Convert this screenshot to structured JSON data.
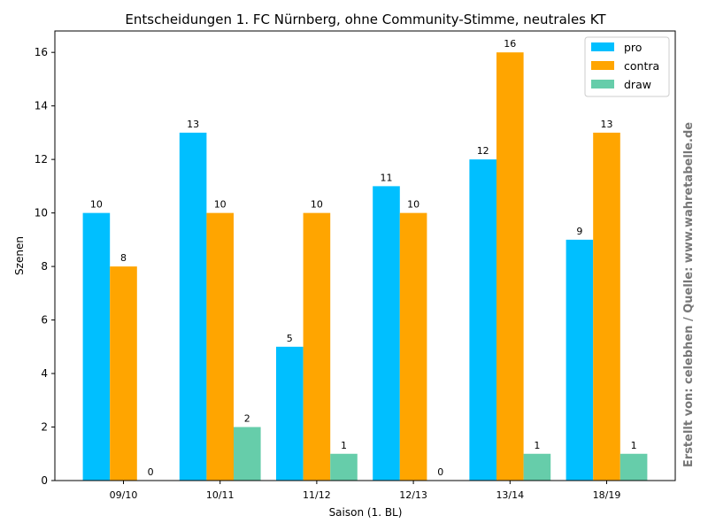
{
  "chart_data": {
    "type": "bar",
    "title": "Entscheidungen 1. FC Nürnberg, ohne Community-Stimme, neutrales KT",
    "xlabel": "Saison (1. BL)",
    "ylabel": "Szenen",
    "categories": [
      "09/10",
      "10/11",
      "11/12",
      "12/13",
      "13/14",
      "18/19"
    ],
    "series": [
      {
        "name": "pro",
        "color": "#00bfff",
        "values": [
          10,
          13,
          5,
          11,
          12,
          9
        ]
      },
      {
        "name": "contra",
        "color": "#ffa500",
        "values": [
          8,
          10,
          10,
          10,
          16,
          13
        ]
      },
      {
        "name": "draw",
        "color": "#66cdaa",
        "values": [
          0,
          2,
          1,
          0,
          1,
          1
        ]
      }
    ],
    "ylim": [
      0,
      16.8
    ],
    "yticks": [
      0,
      2,
      4,
      6,
      8,
      10,
      12,
      14,
      16
    ],
    "legend_position": "top-right",
    "grid": false
  },
  "credit": "Erstellt von: celebhen / Quelle: www.wahretabelle.de"
}
